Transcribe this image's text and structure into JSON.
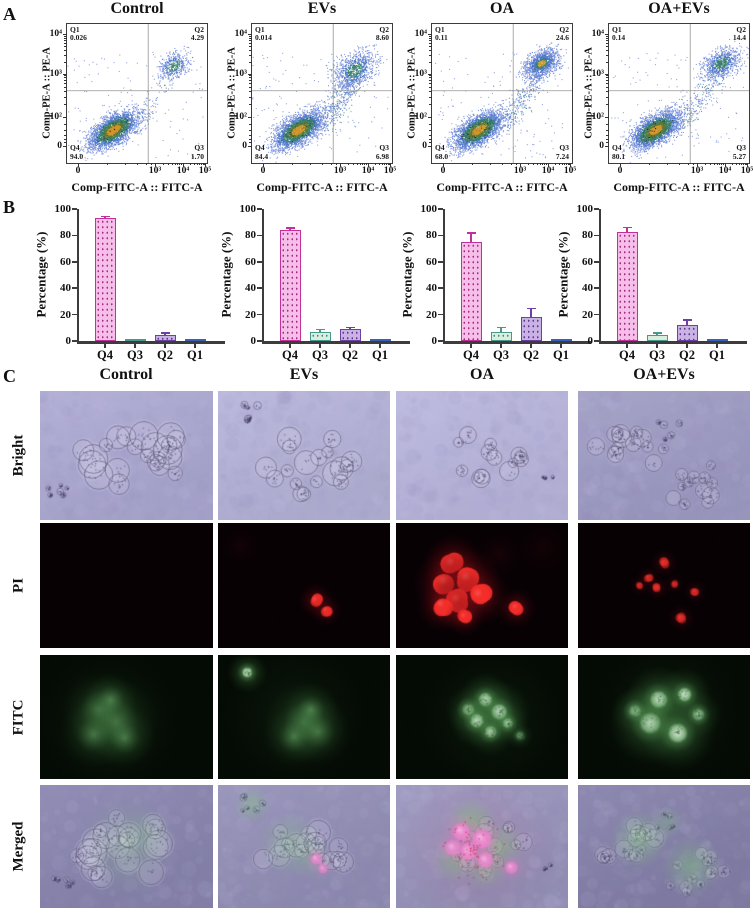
{
  "panels": {
    "a": "A",
    "b": "B",
    "c": "C"
  },
  "conditions": [
    "Control",
    "EVs",
    "OA",
    "OA+EVs"
  ],
  "flow_axes": {
    "x_label": "Comp-FITC-A :: FITC-A",
    "y_label": "Comp-PE-A :: PE-A",
    "x_ticks": [
      "0",
      "10³",
      "10⁴",
      "10⁵"
    ],
    "y_ticks": [
      "10⁴",
      "10³",
      "10²",
      "0"
    ]
  },
  "quadrant_labels": {
    "q1": "Q1",
    "q2": "Q2",
    "q3": "Q3",
    "q4": "Q4"
  },
  "flow_plots": [
    {
      "title": "Control",
      "q1": "0.026",
      "q2": "4.29",
      "q3": "1.70",
      "q4": "94.0"
    },
    {
      "title": "EVs",
      "q1": "0.014",
      "q2": "8.60",
      "q3": "6.98",
      "q4": "84.4"
    },
    {
      "title": "OA",
      "q1": "0.11",
      "q2": "24.6",
      "q3": "7.24",
      "q4": "68.0"
    },
    {
      "title": "OA+EVs",
      "q1": "0.14",
      "q2": "14.4",
      "q3": "5.27",
      "q4": "80.1"
    }
  ],
  "bar_axis": {
    "ylabel": "Percentage (%)",
    "tick_labels": [
      "0",
      "20",
      "40",
      "60",
      "80",
      "100"
    ],
    "categories": [
      "Q4",
      "Q3",
      "Q2",
      "Q1"
    ]
  },
  "chart_data": [
    {
      "type": "scatter",
      "subtype": "flow-cytometry-density",
      "title": "Control",
      "xlabel": "Comp-FITC-A :: FITC-A",
      "ylabel": "Comp-PE-A :: PE-A",
      "x_ticks": [
        "0",
        "10^3",
        "10^4",
        "10^5"
      ],
      "y_ticks": [
        "0",
        "10^2",
        "10^3",
        "10^4"
      ],
      "quadrant_percentages": {
        "Q1": 0.026,
        "Q2": 4.29,
        "Q3": 1.7,
        "Q4": 94.0
      }
    },
    {
      "type": "scatter",
      "subtype": "flow-cytometry-density",
      "title": "EVs",
      "xlabel": "Comp-FITC-A :: FITC-A",
      "ylabel": "Comp-PE-A :: PE-A",
      "x_ticks": [
        "0",
        "10^3",
        "10^4",
        "10^5"
      ],
      "y_ticks": [
        "0",
        "10^2",
        "10^3",
        "10^4"
      ],
      "quadrant_percentages": {
        "Q1": 0.014,
        "Q2": 8.6,
        "Q3": 6.98,
        "Q4": 84.4
      }
    },
    {
      "type": "scatter",
      "subtype": "flow-cytometry-density",
      "title": "OA",
      "xlabel": "Comp-FITC-A :: FITC-A",
      "ylabel": "Comp-PE-A :: PE-A",
      "x_ticks": [
        "0",
        "10^3",
        "10^4",
        "10^5"
      ],
      "y_ticks": [
        "0",
        "10^2",
        "10^3",
        "10^4"
      ],
      "quadrant_percentages": {
        "Q1": 0.11,
        "Q2": 24.6,
        "Q3": 7.24,
        "Q4": 68.0
      }
    },
    {
      "type": "scatter",
      "subtype": "flow-cytometry-density",
      "title": "OA+EVs",
      "xlabel": "Comp-FITC-A :: FITC-A",
      "ylabel": "Comp-PE-A :: PE-A",
      "x_ticks": [
        "0",
        "10^3",
        "10^4",
        "10^5"
      ],
      "y_ticks": [
        "0",
        "10^2",
        "10^3",
        "10^4"
      ],
      "quadrant_percentages": {
        "Q1": 0.14,
        "Q2": 14.4,
        "Q3": 5.27,
        "Q4": 80.1
      }
    },
    {
      "type": "bar",
      "title": "Control",
      "ylabel": "Percentage (%)",
      "ylim": [
        0,
        100
      ],
      "categories": [
        "Q4",
        "Q3",
        "Q2",
        "Q1"
      ],
      "values": [
        93.0,
        1.2,
        4.8,
        0.15
      ],
      "errors": [
        0.8,
        0.4,
        0.8,
        0.1
      ]
    },
    {
      "type": "bar",
      "title": "EVs",
      "ylabel": "Percentage (%)",
      "ylim": [
        0,
        100
      ],
      "categories": [
        "Q4",
        "Q3",
        "Q2",
        "Q1"
      ],
      "values": [
        84.0,
        6.8,
        8.8,
        0.2
      ],
      "errors": [
        1.0,
        1.2,
        0.8,
        0.1
      ]
    },
    {
      "type": "bar",
      "title": "OA",
      "ylabel": "Percentage (%)",
      "ylim": [
        0,
        100
      ],
      "categories": [
        "Q4",
        "Q3",
        "Q2",
        "Q1"
      ],
      "values": [
        75.0,
        6.5,
        18.0,
        0.2
      ],
      "errors": [
        6.0,
        3.0,
        6.0,
        0.1
      ]
    },
    {
      "type": "bar",
      "title": "OA+EVs",
      "ylabel": "Percentage (%)",
      "ylim": [
        0,
        100
      ],
      "categories": [
        "Q4",
        "Q3",
        "Q2",
        "Q1"
      ],
      "values": [
        82.5,
        4.5,
        12.0,
        0.2
      ],
      "errors": [
        3.0,
        0.8,
        3.5,
        0.1
      ]
    }
  ],
  "colors": {
    "bar_q4_fill": "#f5bfe9",
    "bar_q4_edge": "#c3309c",
    "bar_q4_dot": "#a82a86",
    "bar_q3_fill": "#daeede",
    "bar_q3_edge": "#47988f",
    "bar_q3_dot": "#3f8a81",
    "bar_q2_fill": "#c9b2e4",
    "bar_q2_edge": "#6f3fa3",
    "bar_q2_dot": "#5f3791",
    "bar_q1_fill": "#4a72cc",
    "bar_q1_edge": "#3a5fb8",
    "axis": "#3c3c3c"
  },
  "microscopy": {
    "row_labels": [
      "Bright",
      "PI",
      "FITC",
      "Merged"
    ],
    "column_labels": [
      "Control",
      "EVs",
      "OA",
      "OA+EVs"
    ]
  }
}
